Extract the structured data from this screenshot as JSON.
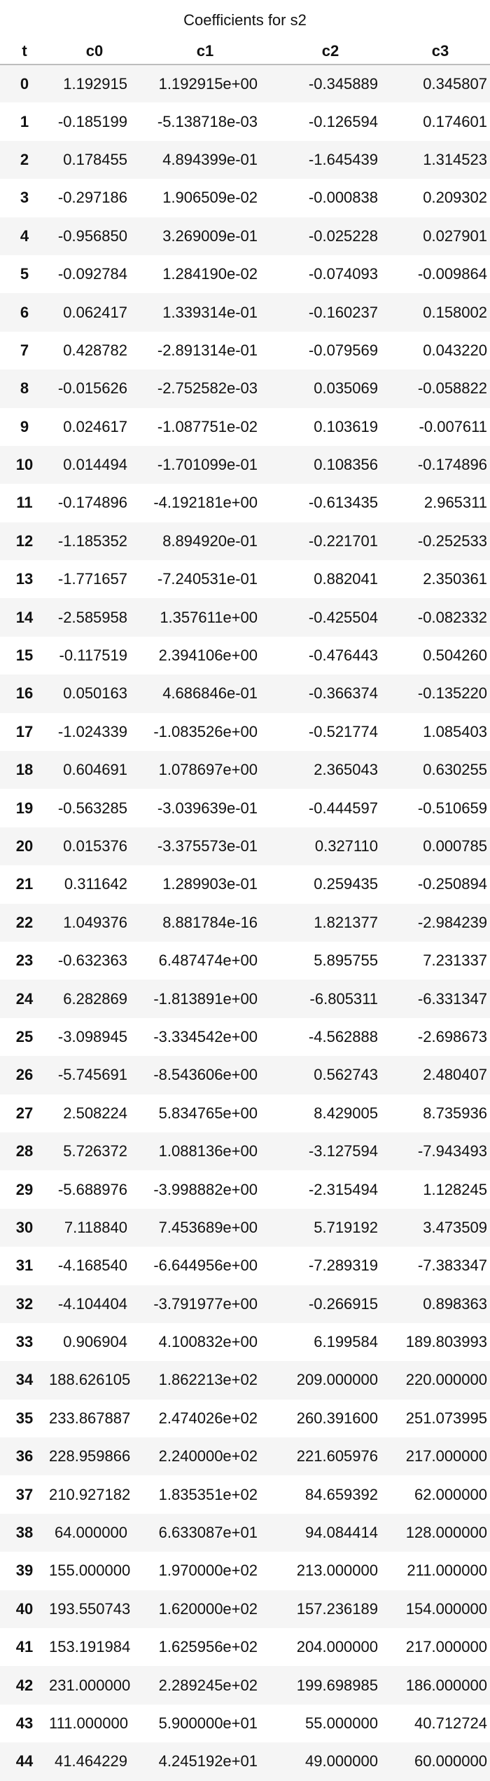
{
  "caption": "Coefficients for s2",
  "columns": [
    "t",
    "c0",
    "c1",
    "c2",
    "c3"
  ],
  "rows": [
    [
      "0",
      "1.192915",
      "1.192915e+00",
      "-0.345889",
      "0.345807"
    ],
    [
      "1",
      "-0.185199",
      "-5.138718e-03",
      "-0.126594",
      "0.174601"
    ],
    [
      "2",
      "0.178455",
      "4.894399e-01",
      "-1.645439",
      "1.314523"
    ],
    [
      "3",
      "-0.297186",
      "1.906509e-02",
      "-0.000838",
      "0.209302"
    ],
    [
      "4",
      "-0.956850",
      "3.269009e-01",
      "-0.025228",
      "0.027901"
    ],
    [
      "5",
      "-0.092784",
      "1.284190e-02",
      "-0.074093",
      "-0.009864"
    ],
    [
      "6",
      "0.062417",
      "1.339314e-01",
      "-0.160237",
      "0.158002"
    ],
    [
      "7",
      "0.428782",
      "-2.891314e-01",
      "-0.079569",
      "0.043220"
    ],
    [
      "8",
      "-0.015626",
      "-2.752582e-03",
      "0.035069",
      "-0.058822"
    ],
    [
      "9",
      "0.024617",
      "-1.087751e-02",
      "0.103619",
      "-0.007611"
    ],
    [
      "10",
      "0.014494",
      "-1.701099e-01",
      "0.108356",
      "-0.174896"
    ],
    [
      "11",
      "-0.174896",
      "-4.192181e+00",
      "-0.613435",
      "2.965311"
    ],
    [
      "12",
      "-1.185352",
      "8.894920e-01",
      "-0.221701",
      "-0.252533"
    ],
    [
      "13",
      "-1.771657",
      "-7.240531e-01",
      "0.882041",
      "2.350361"
    ],
    [
      "14",
      "-2.585958",
      "1.357611e+00",
      "-0.425504",
      "-0.082332"
    ],
    [
      "15",
      "-0.117519",
      "2.394106e+00",
      "-0.476443",
      "0.504260"
    ],
    [
      "16",
      "0.050163",
      "4.686846e-01",
      "-0.366374",
      "-0.135220"
    ],
    [
      "17",
      "-1.024339",
      "-1.083526e+00",
      "-0.521774",
      "1.085403"
    ],
    [
      "18",
      "0.604691",
      "1.078697e+00",
      "2.365043",
      "0.630255"
    ],
    [
      "19",
      "-0.563285",
      "-3.039639e-01",
      "-0.444597",
      "-0.510659"
    ],
    [
      "20",
      "0.015376",
      "-3.375573e-01",
      "0.327110",
      "0.000785"
    ],
    [
      "21",
      "0.311642",
      "1.289903e-01",
      "0.259435",
      "-0.250894"
    ],
    [
      "22",
      "1.049376",
      "8.881784e-16",
      "1.821377",
      "-2.984239"
    ],
    [
      "23",
      "-0.632363",
      "6.487474e+00",
      "5.895755",
      "7.231337"
    ],
    [
      "24",
      "6.282869",
      "-1.813891e+00",
      "-6.805311",
      "-6.331347"
    ],
    [
      "25",
      "-3.098945",
      "-3.334542e+00",
      "-4.562888",
      "-2.698673"
    ],
    [
      "26",
      "-5.745691",
      "-8.543606e+00",
      "0.562743",
      "2.480407"
    ],
    [
      "27",
      "2.508224",
      "5.834765e+00",
      "8.429005",
      "8.735936"
    ],
    [
      "28",
      "5.726372",
      "1.088136e+00",
      "-3.127594",
      "-7.943493"
    ],
    [
      "29",
      "-5.688976",
      "-3.998882e+00",
      "-2.315494",
      "1.128245"
    ],
    [
      "30",
      "7.118840",
      "7.453689e+00",
      "5.719192",
      "3.473509"
    ],
    [
      "31",
      "-4.168540",
      "-6.644956e+00",
      "-7.289319",
      "-7.383347"
    ],
    [
      "32",
      "-4.104404",
      "-3.791977e+00",
      "-0.266915",
      "0.898363"
    ],
    [
      "33",
      "0.906904",
      "4.100832e+00",
      "6.199584",
      "189.803993"
    ],
    [
      "34",
      "188.626105",
      "1.862213e+02",
      "209.000000",
      "220.000000"
    ],
    [
      "35",
      "233.867887",
      "2.474026e+02",
      "260.391600",
      "251.073995"
    ],
    [
      "36",
      "228.959866",
      "2.240000e+02",
      "221.605976",
      "217.000000"
    ],
    [
      "37",
      "210.927182",
      "1.835351e+02",
      "84.659392",
      "62.000000"
    ],
    [
      "38",
      "64.000000",
      "6.633087e+01",
      "94.084414",
      "128.000000"
    ],
    [
      "39",
      "155.000000",
      "1.970000e+02",
      "213.000000",
      "211.000000"
    ],
    [
      "40",
      "193.550743",
      "1.620000e+02",
      "157.236189",
      "154.000000"
    ],
    [
      "41",
      "153.191984",
      "1.625956e+02",
      "204.000000",
      "217.000000"
    ],
    [
      "42",
      "231.000000",
      "2.289245e+02",
      "199.698985",
      "186.000000"
    ],
    [
      "43",
      "111.000000",
      "5.900000e+01",
      "55.000000",
      "40.712724"
    ],
    [
      "44",
      "41.464229",
      "4.245192e+01",
      "49.000000",
      "60.000000"
    ]
  ]
}
